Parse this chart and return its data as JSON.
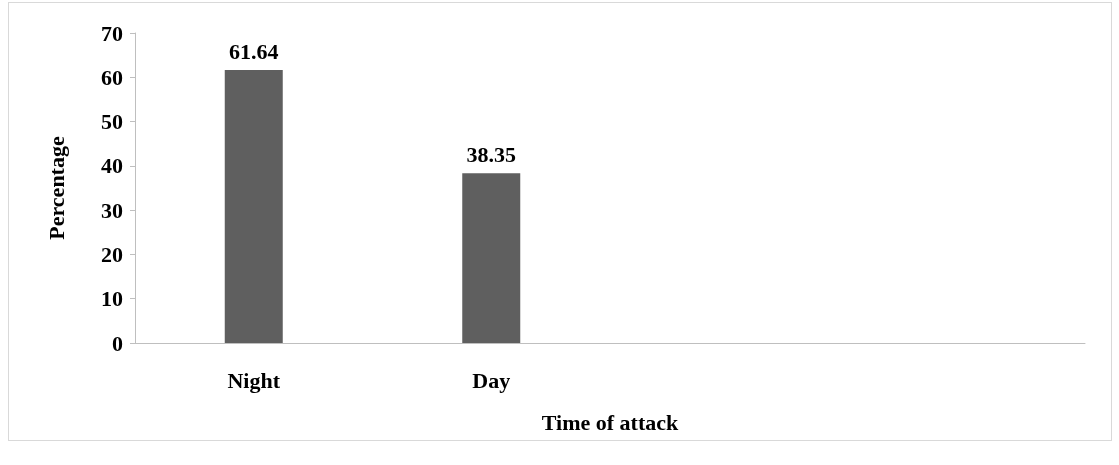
{
  "chart_data": {
    "type": "bar",
    "xlabel": "Time of attack",
    "ylabel": "Percentage",
    "categories": [
      "Night",
      "Day",
      null,
      null
    ],
    "values": [
      61.64,
      38.35,
      null,
      null
    ],
    "color": "#5f5f5f",
    "ylim": [
      0,
      70
    ],
    "yticks": [
      0,
      10,
      20,
      30,
      40,
      50,
      60,
      70
    ],
    "data_labels": true
  }
}
